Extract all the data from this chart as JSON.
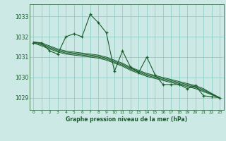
{
  "bg_color": "#cce9e5",
  "grid_color": "#88c8c0",
  "line_color": "#1a5c2a",
  "title": "Graphe pression niveau de la mer (hPa)",
  "xlim": [
    -0.5,
    23.5
  ],
  "ylim": [
    1028.4,
    1033.6
  ],
  "yticks": [
    1029,
    1030,
    1031,
    1032,
    1033
  ],
  "xticks": [
    0,
    1,
    2,
    3,
    4,
    5,
    6,
    7,
    8,
    9,
    10,
    11,
    12,
    13,
    14,
    15,
    16,
    17,
    18,
    19,
    20,
    21,
    22,
    23
  ],
  "series": [
    {
      "x": [
        0,
        1,
        2,
        3,
        4,
        5,
        6,
        7,
        8,
        9,
        10,
        11,
        12,
        13,
        14,
        15,
        16,
        17,
        18,
        19,
        20,
        21,
        22,
        23
      ],
      "y": [
        1031.7,
        1031.7,
        1031.3,
        1031.15,
        1032.0,
        1032.15,
        1032.0,
        1033.1,
        1032.7,
        1032.2,
        1030.3,
        1031.3,
        1030.5,
        1030.25,
        1031.0,
        1030.15,
        1029.65,
        1029.65,
        1029.65,
        1029.45,
        1029.6,
        1029.1,
        1029.05,
        1029.0
      ],
      "marker": true
    },
    {
      "x": [
        0,
        1,
        2,
        3,
        4,
        5,
        6,
        7,
        8,
        9,
        10,
        11,
        12,
        13,
        14,
        15,
        16,
        17,
        18,
        19,
        20,
        21,
        22,
        23
      ],
      "y": [
        1031.7,
        1031.55,
        1031.4,
        1031.25,
        1031.15,
        1031.1,
        1031.05,
        1031.0,
        1030.95,
        1030.85,
        1030.7,
        1030.55,
        1030.35,
        1030.2,
        1030.05,
        1029.95,
        1029.85,
        1029.75,
        1029.65,
        1029.55,
        1029.45,
        1029.3,
        1029.15,
        1029.0
      ],
      "marker": false
    },
    {
      "x": [
        0,
        1,
        2,
        3,
        4,
        5,
        6,
        7,
        8,
        9,
        10,
        11,
        12,
        13,
        14,
        15,
        16,
        17,
        18,
        19,
        20,
        21,
        22,
        23
      ],
      "y": [
        1031.7,
        1031.6,
        1031.45,
        1031.3,
        1031.2,
        1031.15,
        1031.1,
        1031.05,
        1031.0,
        1030.9,
        1030.75,
        1030.6,
        1030.4,
        1030.25,
        1030.1,
        1030.0,
        1029.9,
        1029.8,
        1029.7,
        1029.6,
        1029.5,
        1029.35,
        1029.18,
        1029.0
      ],
      "marker": false
    },
    {
      "x": [
        0,
        1,
        2,
        3,
        4,
        5,
        6,
        7,
        8,
        9,
        10,
        11,
        12,
        13,
        14,
        15,
        16,
        17,
        18,
        19,
        20,
        21,
        22,
        23
      ],
      "y": [
        1031.75,
        1031.65,
        1031.5,
        1031.35,
        1031.25,
        1031.2,
        1031.15,
        1031.1,
        1031.05,
        1030.95,
        1030.8,
        1030.65,
        1030.45,
        1030.3,
        1030.15,
        1030.05,
        1029.95,
        1029.85,
        1029.75,
        1029.65,
        1029.55,
        1029.4,
        1029.2,
        1029.0
      ],
      "marker": false
    },
    {
      "x": [
        0,
        1,
        2,
        3,
        4,
        5,
        6,
        7,
        8,
        9,
        10,
        11,
        12,
        13,
        14,
        15,
        16,
        17,
        18,
        19,
        20,
        21,
        22,
        23
      ],
      "y": [
        1031.75,
        1031.7,
        1031.55,
        1031.4,
        1031.3,
        1031.25,
        1031.2,
        1031.15,
        1031.1,
        1031.0,
        1030.85,
        1030.7,
        1030.5,
        1030.35,
        1030.2,
        1030.1,
        1030.0,
        1029.9,
        1029.8,
        1029.7,
        1029.6,
        1029.45,
        1029.22,
        1029.0
      ],
      "marker": false
    }
  ]
}
